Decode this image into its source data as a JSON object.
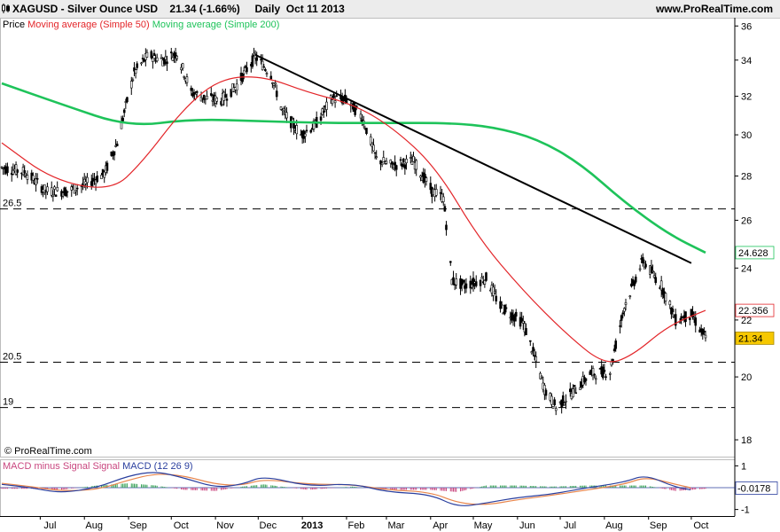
{
  "header": {
    "title": "XAGUSD - Silver Ounce USD",
    "quote": "21.34 (-1.66%)",
    "period": "Daily  Oct 11 2013",
    "site": "www.ProRealTime.com"
  },
  "legend": {
    "price": "Price",
    "ma50": "Moving average (Simple 50)",
    "ma200": "Moving average (Simple 200)"
  },
  "credit": "© ProRealTime.com",
  "macd_legend": {
    "hist": "MACD minus Signal Signal",
    "macd": "MACD (12 26 9)"
  },
  "colors": {
    "price": "#000000",
    "ma50": "#e3262a",
    "ma200": "#1ec35a",
    "last_label_bg": "#f6c800",
    "macd_hist": "#c9467f",
    "macd_line": "#2a3f9e",
    "signal_line": "#e8864c"
  },
  "chart_data": [
    {
      "type": "line",
      "title": "XAGUSD - Silver Ounce USD",
      "y_scale": "log",
      "ylim": [
        17.5,
        36.5
      ],
      "y_ticks": [
        "36",
        "34",
        "32",
        "30",
        "28",
        "26",
        "24",
        "22",
        "20",
        "18"
      ],
      "x_ticks": [
        "Jul",
        "Aug",
        "Sep",
        "Oct",
        "Nov",
        "Dec",
        "2013",
        "Feb",
        "Mar",
        "Apr",
        "May",
        "Jun",
        "Jul",
        "Aug",
        "Sep",
        "Oct"
      ],
      "x_range": [
        "2012-06-04",
        "2013-10-11"
      ],
      "series": [
        {
          "name": "Price",
          "x": [
            "2012-06-04",
            "2012-06-20",
            "2012-07-05",
            "2012-07-20",
            "2012-08-01",
            "2012-08-15",
            "2012-08-24",
            "2012-09-05",
            "2012-09-15",
            "2012-09-25",
            "2012-10-05",
            "2012-10-15",
            "2012-10-25",
            "2012-11-05",
            "2012-11-15",
            "2012-11-29",
            "2012-12-10",
            "2012-12-18",
            "2012-12-31",
            "2013-01-10",
            "2013-01-22",
            "2013-02-01",
            "2013-02-12",
            "2013-02-22",
            "2013-03-05",
            "2013-03-20",
            "2013-04-02",
            "2013-04-10",
            "2013-04-16",
            "2013-04-25",
            "2013-05-10",
            "2013-05-20",
            "2013-06-05",
            "2013-06-20",
            "2013-06-28",
            "2013-07-10",
            "2013-07-22",
            "2013-08-05",
            "2013-08-15",
            "2013-08-28",
            "2013-09-10",
            "2013-09-20",
            "2013-10-01",
            "2013-10-11"
          ],
          "y": [
            28.4,
            28.2,
            27.3,
            27.3,
            27.6,
            28.1,
            29.6,
            33.3,
            34.3,
            34.0,
            34.4,
            32.2,
            31.9,
            31.8,
            32.5,
            34.2,
            33.2,
            31.2,
            30.0,
            30.5,
            31.9,
            31.8,
            30.9,
            28.8,
            28.5,
            28.7,
            27.3,
            27.0,
            23.5,
            23.3,
            23.6,
            22.5,
            21.9,
            19.6,
            19.0,
            19.5,
            20.1,
            20.2,
            22.5,
            24.3,
            23.3,
            22.0,
            22.2,
            21.34
          ]
        },
        {
          "name": "Moving average (Simple 50)",
          "x": [
            "2012-06-04",
            "2012-07-10",
            "2012-08-20",
            "2012-09-10",
            "2012-10-10",
            "2012-11-05",
            "2012-12-05",
            "2013-01-05",
            "2013-02-05",
            "2013-03-05",
            "2013-04-05",
            "2013-05-05",
            "2013-06-05",
            "2013-07-05",
            "2013-08-01",
            "2013-08-20",
            "2013-09-15",
            "2013-10-11"
          ],
          "y": [
            29.6,
            27.8,
            27.3,
            28.6,
            31.4,
            33.0,
            33.1,
            32.2,
            31.6,
            30.4,
            28.4,
            25.2,
            23.1,
            21.5,
            20.4,
            20.7,
            21.8,
            22.356
          ]
        },
        {
          "name": "Moving average (Simple 200)",
          "x": [
            "2012-06-04",
            "2012-07-15",
            "2012-09-01",
            "2012-10-15",
            "2012-12-01",
            "2013-01-15",
            "2013-03-01",
            "2013-04-15",
            "2013-05-15",
            "2013-06-15",
            "2013-07-15",
            "2013-08-15",
            "2013-09-15",
            "2013-10-11"
          ],
          "y": [
            32.7,
            31.6,
            30.4,
            30.8,
            30.7,
            30.6,
            30.6,
            30.6,
            30.4,
            29.8,
            28.6,
            26.8,
            25.4,
            24.628
          ]
        }
      ],
      "trendline": {
        "from": [
          "2012-11-29",
          34.3
        ],
        "to": [
          "2013-10-01",
          24.2
        ]
      },
      "horizontal_levels": [
        {
          "label": "26.5",
          "value": 26.5
        },
        {
          "label": "20.5",
          "value": 20.5
        },
        {
          "label": "19",
          "value": 19
        }
      ],
      "last_values": [
        {
          "label": "24.628",
          "value": 24.628,
          "series": "Moving average (Simple 200)"
        },
        {
          "label": "22.356",
          "value": 22.356,
          "series": "Moving average (Simple 50)"
        },
        {
          "label": "21.34",
          "value": 21.34,
          "series": "Price"
        }
      ]
    },
    {
      "type": "line",
      "title": "MACD (12 26 9)",
      "ylim": [
        -1.3,
        1.3
      ],
      "y_ticks": [
        "1",
        "-1"
      ],
      "last_value": {
        "label": "-0.0178",
        "value": -0.0178
      },
      "series": [
        {
          "name": "MACD",
          "x": [
            "2012-06-04",
            "2012-06-25",
            "2012-07-15",
            "2012-08-10",
            "2012-09-01",
            "2012-09-20",
            "2012-10-10",
            "2012-11-01",
            "2012-11-20",
            "2012-12-05",
            "2013-01-05",
            "2013-02-05",
            "2013-03-01",
            "2013-04-01",
            "2013-04-20",
            "2013-05-10",
            "2013-06-01",
            "2013-06-25",
            "2013-07-20",
            "2013-08-15",
            "2013-08-30",
            "2013-09-20",
            "2013-10-11"
          ],
          "y": [
            0.15,
            0.0,
            -0.25,
            0.0,
            0.55,
            0.75,
            0.45,
            0.0,
            0.15,
            0.55,
            0.05,
            0.2,
            -0.2,
            -0.3,
            -0.9,
            -0.7,
            -0.45,
            -0.3,
            0.0,
            0.25,
            0.6,
            0.0,
            -0.2
          ]
        },
        {
          "name": "Signal",
          "x": [
            "2012-06-04",
            "2012-06-25",
            "2012-07-15",
            "2012-08-10",
            "2012-09-01",
            "2012-09-20",
            "2012-10-10",
            "2012-11-01",
            "2012-11-20",
            "2012-12-05",
            "2013-01-05",
            "2013-02-05",
            "2013-03-01",
            "2013-04-01",
            "2013-04-20",
            "2013-05-10",
            "2013-06-01",
            "2013-06-25",
            "2013-07-20",
            "2013-08-15",
            "2013-08-30",
            "2013-09-20",
            "2013-10-11"
          ],
          "y": [
            0.2,
            0.05,
            -0.15,
            -0.1,
            0.35,
            0.65,
            0.55,
            0.15,
            0.1,
            0.4,
            0.15,
            0.15,
            -0.1,
            -0.2,
            -0.7,
            -0.8,
            -0.55,
            -0.35,
            -0.1,
            0.15,
            0.5,
            0.15,
            -0.15
          ]
        }
      ],
      "histogram_name": "MACD minus Signal"
    }
  ]
}
